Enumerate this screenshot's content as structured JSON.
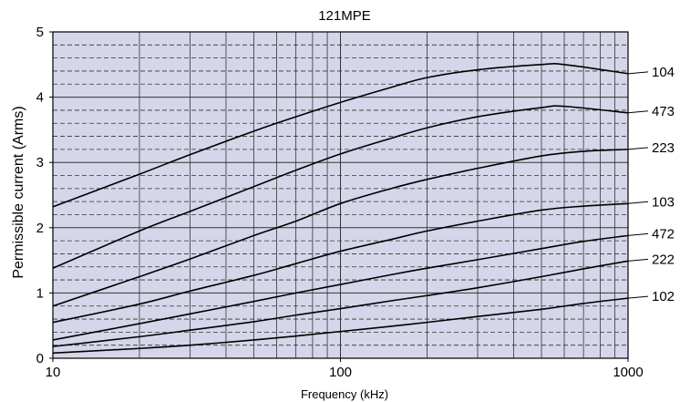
{
  "chart_data": {
    "type": "line",
    "title": "121MPE",
    "xlabel": "Frequency (kHz)",
    "ylabel": "Permissible current (Arms)",
    "x_scale": "log",
    "xlim": [
      10,
      1000
    ],
    "ylim": [
      0,
      5
    ],
    "x_ticks": [
      {
        "value": 10,
        "label": "10"
      },
      {
        "value": 100,
        "label": "100"
      },
      {
        "value": 1000,
        "label": "1000"
      }
    ],
    "y_ticks": [
      {
        "value": 0,
        "label": "0"
      },
      {
        "value": 1,
        "label": "1"
      },
      {
        "value": 2,
        "label": "2"
      },
      {
        "value": 3,
        "label": "3"
      },
      {
        "value": 4,
        "label": "4"
      },
      {
        "value": 5,
        "label": "5"
      }
    ],
    "grid": true,
    "colors": {
      "plot_background": "#d6d6ea",
      "line": "#000000",
      "grid": "#333333"
    },
    "series": [
      {
        "name": "104",
        "x": [
          10,
          20,
          30,
          50,
          70,
          100,
          150,
          200,
          300,
          500,
          600,
          1000
        ],
        "y": [
          2.32,
          2.82,
          3.12,
          3.48,
          3.7,
          3.92,
          4.15,
          4.3,
          4.42,
          4.5,
          4.5,
          4.36
        ]
      },
      {
        "name": "473",
        "x": [
          10,
          20,
          30,
          50,
          70,
          100,
          150,
          200,
          300,
          500,
          600,
          1000
        ],
        "y": [
          1.38,
          1.95,
          2.25,
          2.63,
          2.88,
          3.13,
          3.37,
          3.53,
          3.7,
          3.84,
          3.86,
          3.76
        ]
      },
      {
        "name": "223",
        "x": [
          10,
          20,
          30,
          50,
          70,
          100,
          150,
          200,
          300,
          500,
          700,
          1000
        ],
        "y": [
          0.8,
          1.25,
          1.52,
          1.88,
          2.1,
          2.37,
          2.6,
          2.74,
          2.91,
          3.1,
          3.17,
          3.2
        ]
      },
      {
        "name": "103",
        "x": [
          10,
          20,
          30,
          50,
          70,
          100,
          150,
          200,
          300,
          500,
          700,
          1000
        ],
        "y": [
          0.55,
          0.83,
          1.03,
          1.27,
          1.45,
          1.64,
          1.82,
          1.95,
          2.1,
          2.27,
          2.33,
          2.37
        ]
      },
      {
        "name": "472",
        "x": [
          10,
          20,
          30,
          50,
          70,
          100,
          150,
          200,
          300,
          500,
          700,
          1000
        ],
        "y": [
          0.28,
          0.53,
          0.68,
          0.87,
          1.0,
          1.13,
          1.28,
          1.38,
          1.51,
          1.68,
          1.79,
          1.88
        ]
      },
      {
        "name": "222",
        "x": [
          10,
          20,
          30,
          50,
          70,
          100,
          150,
          200,
          300,
          500,
          700,
          1000
        ],
        "y": [
          0.18,
          0.33,
          0.43,
          0.56,
          0.66,
          0.76,
          0.88,
          0.96,
          1.08,
          1.25,
          1.37,
          1.49
        ]
      },
      {
        "name": "102",
        "x": [
          10,
          20,
          30,
          50,
          70,
          100,
          150,
          200,
          300,
          500,
          700,
          1000
        ],
        "y": [
          0.08,
          0.15,
          0.2,
          0.28,
          0.34,
          0.41,
          0.49,
          0.55,
          0.64,
          0.75,
          0.84,
          0.92
        ]
      }
    ]
  }
}
